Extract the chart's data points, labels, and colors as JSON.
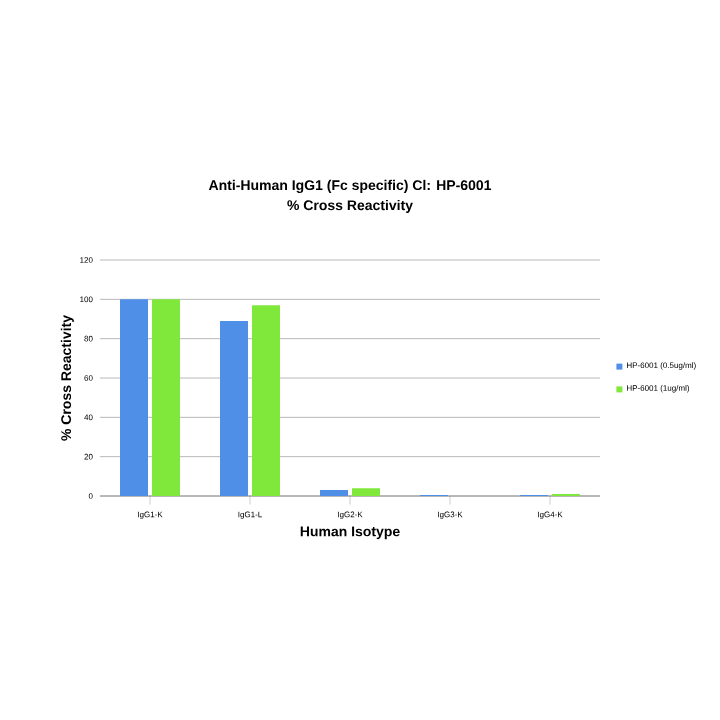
{
  "chart_data": {
    "type": "bar",
    "title": "Anti-Human IgG1 (Fc specific) Cl: HP-6001",
    "subtitle": "% Cross Reactivity",
    "xlabel": "Human Isotype",
    "ylabel": "% Cross Reactivity",
    "categories": [
      "IgG1-K",
      "IgG1-L",
      "IgG2-K",
      "IgG3-K",
      "IgG4-K"
    ],
    "series": [
      {
        "name": "HP-6001 (0.5ug/ml)",
        "color": "#4f8fe8",
        "values": [
          100,
          89,
          3,
          0.5,
          0.5
        ]
      },
      {
        "name": "HP-6001 (1ug/ml)",
        "color": "#80e83a",
        "values": [
          100,
          97,
          4,
          0,
          1
        ]
      }
    ],
    "ylim": [
      0,
      120
    ],
    "yticks": [
      0,
      20,
      40,
      60,
      80,
      100,
      120
    ],
    "grid": "y",
    "legend": "right"
  }
}
